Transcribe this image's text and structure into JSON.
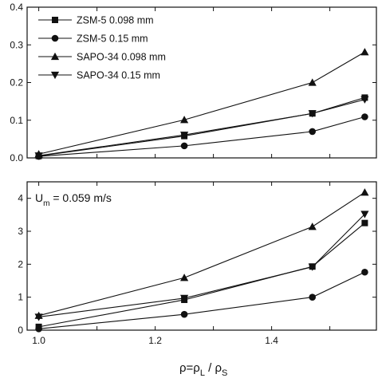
{
  "chart_data": [
    {
      "type": "line",
      "panel": "top",
      "x": [
        1.0,
        1.25,
        1.47,
        1.56
      ],
      "xlim": [
        0.98,
        1.58
      ],
      "ylim": [
        0,
        0.4
      ],
      "yticks": [
        "0.0",
        "0.1",
        "0.2",
        "0.3",
        "0.4"
      ],
      "yticks_values": [
        0,
        0.1,
        0.2,
        0.3,
        0.4
      ],
      "grid": false,
      "legend_position": "top-left",
      "series": [
        {
          "name": "ZSM-5 0.098 mm",
          "marker": "square",
          "values": [
            0.005,
            0.058,
            0.118,
            0.16
          ]
        },
        {
          "name": "ZSM-5 0.15 mm",
          "marker": "circle",
          "values": [
            0.004,
            0.032,
            0.07,
            0.109
          ]
        },
        {
          "name": "SAPO-34 0.098 mm",
          "marker": "triangle-up",
          "values": [
            0.01,
            0.101,
            0.2,
            0.281
          ]
        },
        {
          "name": "SAPO-34 0.15 mm",
          "marker": "triangle-down",
          "values": [
            0.006,
            0.061,
            0.118,
            0.155
          ]
        }
      ]
    },
    {
      "type": "line",
      "panel": "bottom",
      "x": [
        1.0,
        1.25,
        1.47,
        1.56
      ],
      "xlim": [
        0.98,
        1.58
      ],
      "ylim": [
        0,
        4.5
      ],
      "yticks": [
        "0",
        "1",
        "2",
        "3",
        "4"
      ],
      "yticks_values": [
        0,
        1,
        2,
        3,
        4
      ],
      "xticks": [
        "1.0",
        "1.2",
        "1.4"
      ],
      "xticks_values": [
        1.0,
        1.2,
        1.4
      ],
      "xlabel": "ρ=ρL / ρS",
      "annotation": "Um = 0.059 m/s",
      "grid": false,
      "series": [
        {
          "name": "ZSM-5 0.098 mm",
          "marker": "square",
          "values": [
            0.1,
            0.92,
            1.93,
            3.25
          ]
        },
        {
          "name": "ZSM-5 0.15 mm",
          "marker": "circle",
          "values": [
            0.04,
            0.48,
            1.0,
            1.76
          ]
        },
        {
          "name": "SAPO-34 0.098 mm",
          "marker": "triangle-up",
          "values": [
            0.44,
            1.59,
            3.14,
            4.18
          ]
        },
        {
          "name": "SAPO-34 0.15 mm",
          "marker": "triangle-down",
          "values": [
            0.4,
            0.97,
            1.92,
            3.52
          ]
        }
      ]
    }
  ],
  "labels": {
    "xlabel_main": "ρ=ρ",
    "xlabel_sub1": "L",
    "xlabel_mid": " / ρ",
    "xlabel_sub2": "S",
    "annot_main": "U",
    "annot_sub": "m",
    "annot_rest": " = 0.059 m/s"
  }
}
